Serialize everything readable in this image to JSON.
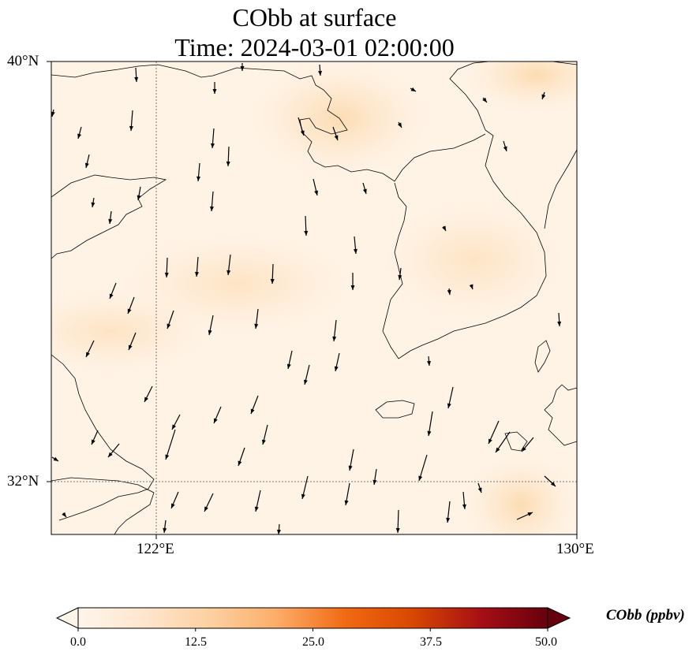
{
  "title": {
    "line1": "CObb at surface",
    "line2": "Time: 2024-03-01 02:00:00"
  },
  "map": {
    "variable": "CObb",
    "extent": {
      "lon_min": 120,
      "lon_max": 130,
      "lat_min": 31,
      "lat_max": 40
    },
    "lon_ticks": [
      {
        "value": 122,
        "label": "122°E"
      },
      {
        "value": 130,
        "label": "130°E"
      }
    ],
    "lat_ticks": [
      {
        "value": 40,
        "label": "40°N"
      },
      {
        "value": 32,
        "label": "32°N"
      }
    ],
    "gridlines": {
      "lons": [
        122
      ],
      "lats": [
        32
      ]
    },
    "colors": {
      "background_low": "#fff5eb",
      "background_mid": "#fde3c4",
      "coastline": "#000000",
      "gridline": "#777777",
      "arrow": "#000000"
    }
  },
  "colorbar": {
    "label": "CObb (ppbv)",
    "min": 0.0,
    "max": 50.0,
    "extend": "both",
    "ticks": [
      "0.0",
      "12.5",
      "25.0",
      "37.5",
      "50.0"
    ],
    "colormap": [
      "#fff5eb",
      "#fee6ce",
      "#fdd0a2",
      "#fdae6b",
      "#f16913",
      "#d94801",
      "#a50f15",
      "#67000d"
    ]
  },
  "chart_data": {
    "type": "map",
    "title": "CObb at surface\nTime: 2024-03-01 02:00:00",
    "colorbar_label": "CObb (ppbv)",
    "value_range": [
      0.0,
      50.0
    ],
    "colorbar_ticks": [
      0.0,
      12.5,
      25.0,
      37.5,
      50.0
    ],
    "xlabel_ticks": [
      "122°E",
      "130°E"
    ],
    "ylabel_ticks": [
      "40°N",
      "32°N"
    ],
    "field_summary": "CObb mostly 0–12.5 ppbv; higher (~10–12 ppbv) patches over the Bohai region, NE corner and SE corner",
    "wind_vectors": "predominantly northerly (arrows pointing south to south-southwest)"
  }
}
